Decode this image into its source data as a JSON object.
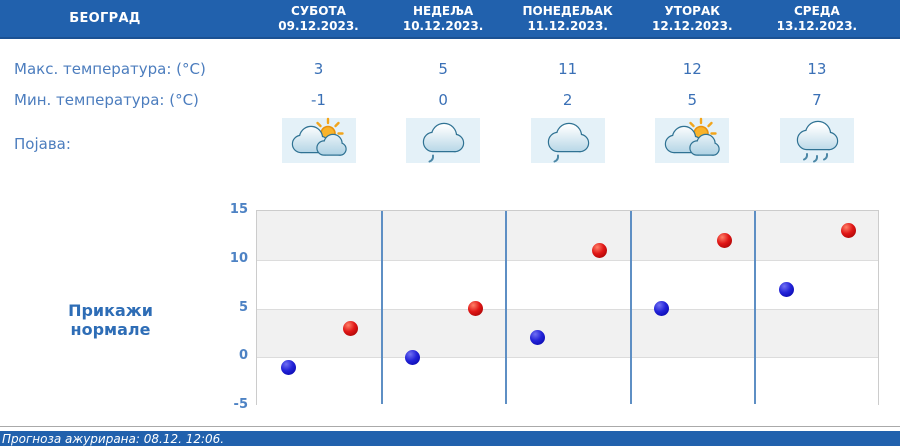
{
  "city": "БЕОГРАД",
  "columns": [
    {
      "day": "СУБОТА",
      "date": "09.12.2023."
    },
    {
      "day": "НЕДЕЉА",
      "date": "10.12.2023."
    },
    {
      "day": "ПОНЕДЕЉАК",
      "date": "11.12.2023."
    },
    {
      "day": "УТОРАК",
      "date": "12.12.2023."
    },
    {
      "day": "СРЕДА",
      "date": "13.12.2023."
    }
  ],
  "rows": {
    "max_temp": {
      "label": "Макс. температура: (°C)",
      "values": [
        "3",
        "5",
        "11",
        "12",
        "13"
      ]
    },
    "min_temp": {
      "label": "Мин. температура: (°C)",
      "values": [
        "-1",
        "0",
        "2",
        "5",
        "7"
      ]
    },
    "phenomenon": {
      "label": "Појава:",
      "icons": [
        "partly-cloudy",
        "drizzle",
        "drizzle",
        "partly-cloudy",
        "rain"
      ]
    }
  },
  "normals_button": {
    "label": "Прикажи нормале"
  },
  "footer": {
    "text": "Прогноза ажурирана:  08.12. 12:06."
  },
  "chart_data": {
    "type": "scatter",
    "categories": [
      "СУБОТА",
      "НЕДЕЉА",
      "ПОНЕДЕЉАК",
      "УТОРАК",
      "СРЕДА"
    ],
    "series": [
      {
        "name": "Мин. температура (°C)",
        "color": "#1a1acc",
        "values": [
          -1,
          0,
          2,
          5,
          7
        ]
      },
      {
        "name": "Макс. температура (°C)",
        "color": "#d31414",
        "values": [
          3,
          5,
          11,
          12,
          13
        ]
      }
    ],
    "ylim": [
      -5,
      15
    ],
    "yticks": [
      15,
      10,
      5,
      0,
      -5
    ],
    "grid": "horizontal",
    "band_colors": [
      "#f1f1f1",
      "#ffffff"
    ],
    "divider_color": "#5e8fc4",
    "legend": "none"
  }
}
